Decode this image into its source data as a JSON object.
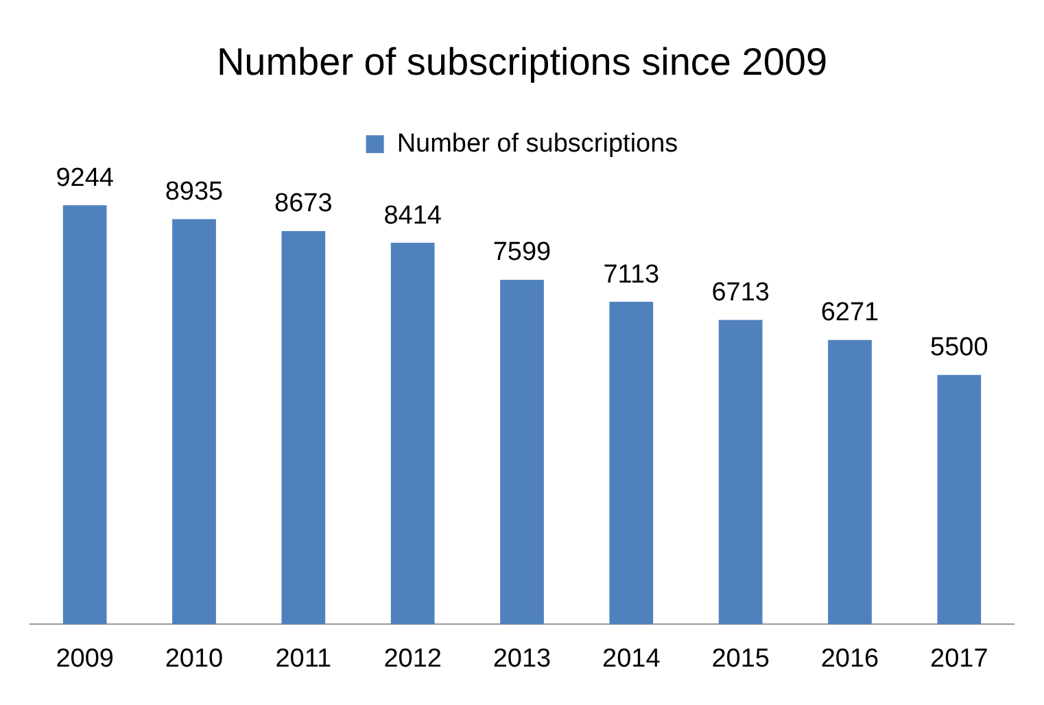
{
  "chart_data": {
    "type": "bar",
    "title": "Number of subscriptions since 2009",
    "categories": [
      "2009",
      "2010",
      "2011",
      "2012",
      "2013",
      "2014",
      "2015",
      "2016",
      "2017"
    ],
    "series": [
      {
        "name": "Number of subscriptions",
        "color": "#4f81bd",
        "values": [
          9244,
          8935,
          8673,
          8414,
          7599,
          7113,
          6713,
          6271,
          5500
        ]
      }
    ],
    "data_labels": true,
    "legend": "top",
    "grid": false
  }
}
